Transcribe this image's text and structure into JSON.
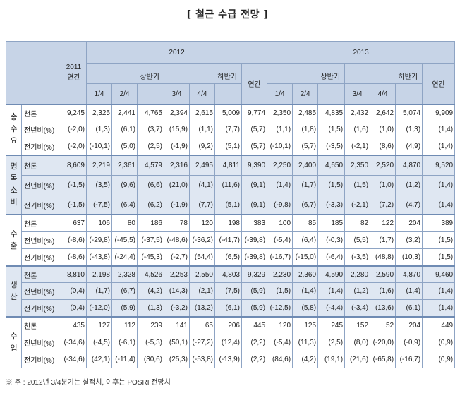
{
  "title": "[ 철근 수급 전망 ]",
  "header": {
    "y2011_line1": "2011",
    "y2011_line2": "연간",
    "y2012": "2012",
    "y2013": "2013",
    "h1": "상반기",
    "h2": "하반기",
    "annual": "연간",
    "q1": "1/4",
    "q2": "2/4",
    "q3": "3/4",
    "q4": "4/4"
  },
  "groups": [
    {
      "name": "총수요",
      "rows": [
        {
          "unit": "천톤",
          "values": [
            "9,245",
            "2,325",
            "2,441",
            "4,765",
            "2,394",
            "2,615",
            "5,009",
            "9,774",
            "2,350",
            "2,485",
            "4,835",
            "2,432",
            "2,642",
            "5,074",
            "9,909"
          ]
        },
        {
          "unit": "전년비(%)",
          "values": [
            "(-2,0)",
            "(1,3)",
            "(6,1)",
            "(3,7)",
            "(15,9)",
            "(1,1)",
            "(7,7)",
            "(5,7)",
            "(1,1)",
            "(1,8)",
            "(1,5)",
            "(1,6)",
            "(1,0)",
            "(1,3)",
            "(1,4)"
          ]
        },
        {
          "unit": "전기비(%)",
          "values": [
            "(-2,0)",
            "(-10,1)",
            "(5,0)",
            "(2,5)",
            "(-1,9)",
            "(9,2)",
            "(5,1)",
            "(5,7)",
            "(-10,1)",
            "(5,7)",
            "(-3,5)",
            "(-2,1)",
            "(8,6)",
            "(4,9)",
            "(1,4)"
          ]
        }
      ]
    },
    {
      "name": "명목소비",
      "rows": [
        {
          "unit": "천톤",
          "values": [
            "8,609",
            "2,219",
            "2,361",
            "4,579",
            "2,316",
            "2,495",
            "4,811",
            "9,390",
            "2,250",
            "2,400",
            "4,650",
            "2,350",
            "2,520",
            "4,870",
            "9,520"
          ]
        },
        {
          "unit": "전년비(%)",
          "values": [
            "(-1,5)",
            "(3,5)",
            "(9,6)",
            "(6,6)",
            "(21,0)",
            "(4,1)",
            "(11,6)",
            "(9,1)",
            "(1,4)",
            "(1,7)",
            "(1,5)",
            "(1,5)",
            "(1,0)",
            "(1,2)",
            "(1,4)"
          ]
        },
        {
          "unit": "전기비(%)",
          "values": [
            "(-1,5)",
            "(-7,5)",
            "(6,4)",
            "(6,2)",
            "(-1,9)",
            "(7,7)",
            "(5,1)",
            "(9,1)",
            "(-9,8)",
            "(6,7)",
            "(-3,3)",
            "(-2,1)",
            "(7,2)",
            "(4,7)",
            "(1,4)"
          ]
        }
      ]
    },
    {
      "name": "수출",
      "rows": [
        {
          "unit": "천톤",
          "values": [
            "637",
            "106",
            "80",
            "186",
            "78",
            "120",
            "198",
            "383",
            "100",
            "85",
            "185",
            "82",
            "122",
            "204",
            "389"
          ]
        },
        {
          "unit": "전년비(%)",
          "values": [
            "(-8,6)",
            "(-29,8)",
            "(-45,5)",
            "(-37,5)",
            "(-48,6)",
            "(-36,2)",
            "(-41,7)",
            "(-39,8)",
            "(-5,4)",
            "(6,4)",
            "(-0,3)",
            "(5,5)",
            "(1,7)",
            "(3,2)",
            "(1,5)"
          ]
        },
        {
          "unit": "전기비(%)",
          "values": [
            "(-8,6)",
            "(-43,8)",
            "(-24,4)",
            "(-45,3)",
            "(-2,7)",
            "(54,4)",
            "(6,5)",
            "(-39,8)",
            "(-16,7)",
            "(-15,0)",
            "(-6,4)",
            "(-3,5)",
            "(48,8)",
            "(10,3)",
            "(1,5)"
          ]
        }
      ]
    },
    {
      "name": "생산",
      "rows": [
        {
          "unit": "천톤",
          "values": [
            "8,810",
            "2,198",
            "2,328",
            "4,526",
            "2,253",
            "2,550",
            "4,803",
            "9,329",
            "2,230",
            "2,360",
            "4,590",
            "2,280",
            "2,590",
            "4,870",
            "9,460"
          ]
        },
        {
          "unit": "전년비(%)",
          "values": [
            "(0,4)",
            "(1,7)",
            "(6,7)",
            "(4,2)",
            "(14,3)",
            "(2,1)",
            "(7,5)",
            "(5,9)",
            "(1,5)",
            "(1,4)",
            "(1,4)",
            "(1,2)",
            "(1,6)",
            "(1,4)",
            "(1,4)"
          ]
        },
        {
          "unit": "전기비(%)",
          "values": [
            "(0,4)",
            "(-12,0)",
            "(5,9)",
            "(1,3)",
            "(-3,2)",
            "(13,2)",
            "(6,1)",
            "(5,9)",
            "(-12,5)",
            "(5,8)",
            "(-4,4)",
            "(-3,4)",
            "(13,6)",
            "(6,1)",
            "(1,4)"
          ]
        }
      ]
    },
    {
      "name": "수입",
      "rows": [
        {
          "unit": "천톤",
          "values": [
            "435",
            "127",
            "112",
            "239",
            "141",
            "65",
            "206",
            "445",
            "120",
            "125",
            "245",
            "152",
            "52",
            "204",
            "449"
          ]
        },
        {
          "unit": "전년비(%)",
          "values": [
            "(-34,6)",
            "(-4,5)",
            "(-6,1)",
            "(-5,3)",
            "(50,1)",
            "(-27,2)",
            "(12,4)",
            "(2,2)",
            "(-5,4)",
            "(11,3)",
            "(2,5)",
            "(8,0)",
            "(-20,0)",
            "(-0,9)",
            "(0,9)"
          ]
        },
        {
          "unit": "전기비(%)",
          "values": [
            "(-34,6)",
            "(42,1)",
            "(-11,4)",
            "(30,6)",
            "(25,3)",
            "(-53,8)",
            "(-13,9)",
            "(2,2)",
            "(84,6)",
            "(4,2)",
            "(19,1)",
            "(21,6)",
            "(-65,8)",
            "(-16,7)",
            "(0,9)"
          ]
        }
      ]
    }
  ],
  "footnote": "※ 주 : 2012년 3/4분기는 실적치, 이후는 POSRI 전망치",
  "colors": {
    "header_fill": "#c7d4e7",
    "border": "#8ea4c4",
    "shade": "#dfe7f2"
  }
}
